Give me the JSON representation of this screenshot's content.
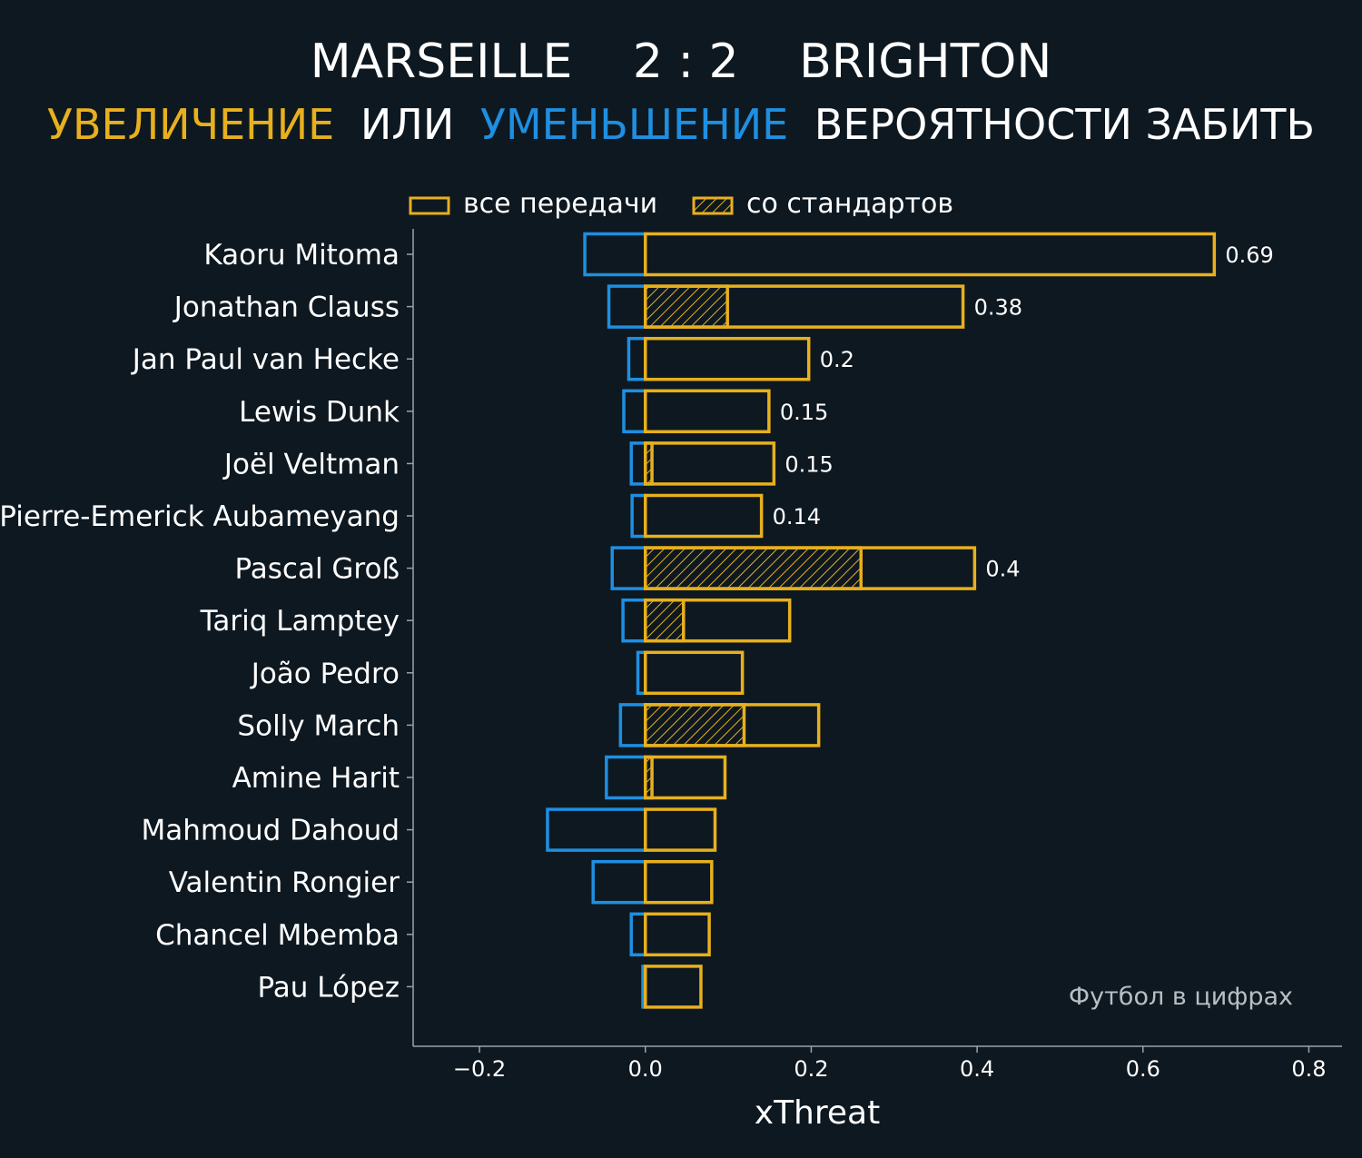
{
  "header": {
    "home_team": "MARSEILLE",
    "score": "2 : 2",
    "away_team": "BRIGHTON",
    "subtitle_increase": "УВЕЛИЧЕНИЕ",
    "subtitle_or": "ИЛИ",
    "subtitle_decrease": "УМЕНЬШЕНИЕ",
    "subtitle_rest": "ВЕРОЯТНОСТИ ЗАБИТЬ"
  },
  "watermark": "Футбол в цифрах",
  "colors": {
    "background": "#0e1820",
    "increase": "#e7b01e",
    "decrease": "#1e8fe1",
    "text": "#ffffff",
    "axis": "#9aa3aa"
  },
  "chart_data": {
    "type": "bar",
    "orientation": "horizontal",
    "xlabel": "xThreat",
    "ylabel": "",
    "xlim": [
      -0.28,
      0.84
    ],
    "xticks": [
      -0.2,
      0.0,
      0.2,
      0.4,
      0.6,
      0.8
    ],
    "xtick_labels": [
      "−0.2",
      "0.0",
      "0.2",
      "0.4",
      "0.6",
      "0.8"
    ],
    "grid": false,
    "legend_position": "top-center",
    "categories": [
      "Kaoru Mitoma",
      "Jonathan Clauss",
      "Jan Paul van Hecke",
      "Lewis Dunk",
      "Joël Veltman",
      "Pierre-Emerick Aubameyang",
      "Pascal Groß",
      "Tariq Lamptey",
      "João Pedro",
      "Solly March",
      "Amine Harit",
      "Mahmoud Dahoud",
      "Valentin Rongier",
      "Chancel Mbemba",
      "Pau López"
    ],
    "series": [
      {
        "name": "все передачи",
        "values": [
          0.686,
          0.383,
          0.197,
          0.149,
          0.155,
          0.14,
          0.397,
          0.174,
          0.117,
          0.209,
          0.096,
          0.084,
          0.08,
          0.077,
          0.067
        ]
      },
      {
        "name": "со стандартов",
        "values": [
          0.0,
          0.099,
          0.0,
          0.0,
          0.008,
          0.0,
          0.26,
          0.046,
          0.0,
          0.119,
          0.008,
          0.0,
          0.0,
          0.0,
          0.0
        ]
      },
      {
        "values": [
          -0.073,
          -0.044,
          -0.02,
          -0.026,
          -0.017,
          -0.016,
          -0.04,
          -0.027,
          -0.009,
          -0.03,
          -0.047,
          -0.118,
          -0.063,
          -0.017,
          -0.003
        ]
      }
    ],
    "data_labels": [
      "0.69",
      "0.38",
      "0.2",
      "0.15",
      "0.15",
      "0.14",
      "0.4",
      "",
      "",
      "",
      "",
      "",
      "",
      "",
      ""
    ]
  }
}
